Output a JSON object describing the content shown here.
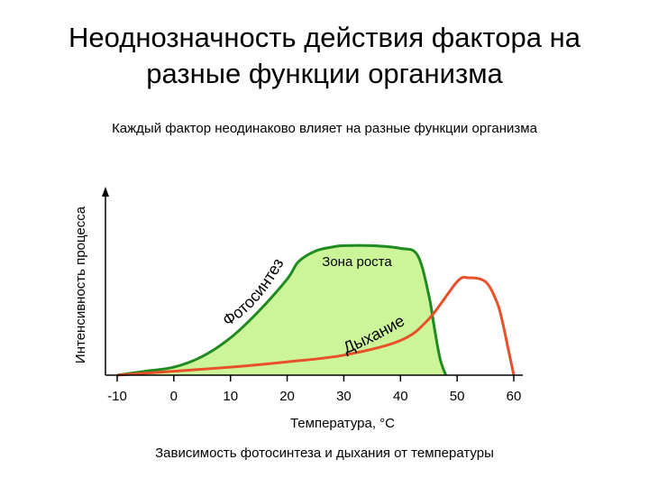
{
  "title_line1": "Неоднозначность действия фактора на",
  "title_line2": "разные функции организма",
  "subtitle": "Каждый фактор неодинаково влияет на разные функции организма",
  "caption": "Зависимость фотосинтеза и дыхания от температуры",
  "chart_data": {
    "type": "line",
    "xlabel": "Температура, °С",
    "ylabel": "Интенсивность процесса",
    "x_ticks": [
      "-10",
      "0",
      "10",
      "20",
      "30",
      "40",
      "50",
      "60"
    ],
    "xlim": [
      -10,
      60
    ],
    "ylim": [
      0,
      1
    ],
    "series": [
      {
        "name": "Фотосинтез",
        "color": "#1f8a1f",
        "fill": "#ccf59a",
        "x": [
          -10,
          -5,
          0,
          5,
          10,
          15,
          20,
          22,
          25,
          28,
          30,
          35,
          40,
          43,
          45,
          46,
          47,
          48
        ],
        "y": [
          0.0,
          0.03,
          0.06,
          0.14,
          0.28,
          0.48,
          0.72,
          0.85,
          0.93,
          0.96,
          0.97,
          0.97,
          0.95,
          0.9,
          0.6,
          0.35,
          0.12,
          0.0
        ]
      },
      {
        "name": "Дыхание",
        "color": "#e8502a",
        "x": [
          -10,
          0,
          10,
          20,
          30,
          40,
          45,
          50,
          52,
          55,
          57,
          58,
          59,
          60
        ],
        "y": [
          0.0,
          0.03,
          0.06,
          0.1,
          0.15,
          0.26,
          0.42,
          0.7,
          0.73,
          0.7,
          0.55,
          0.4,
          0.2,
          0.0
        ]
      }
    ],
    "annotations": [
      "Зона роста"
    ]
  }
}
